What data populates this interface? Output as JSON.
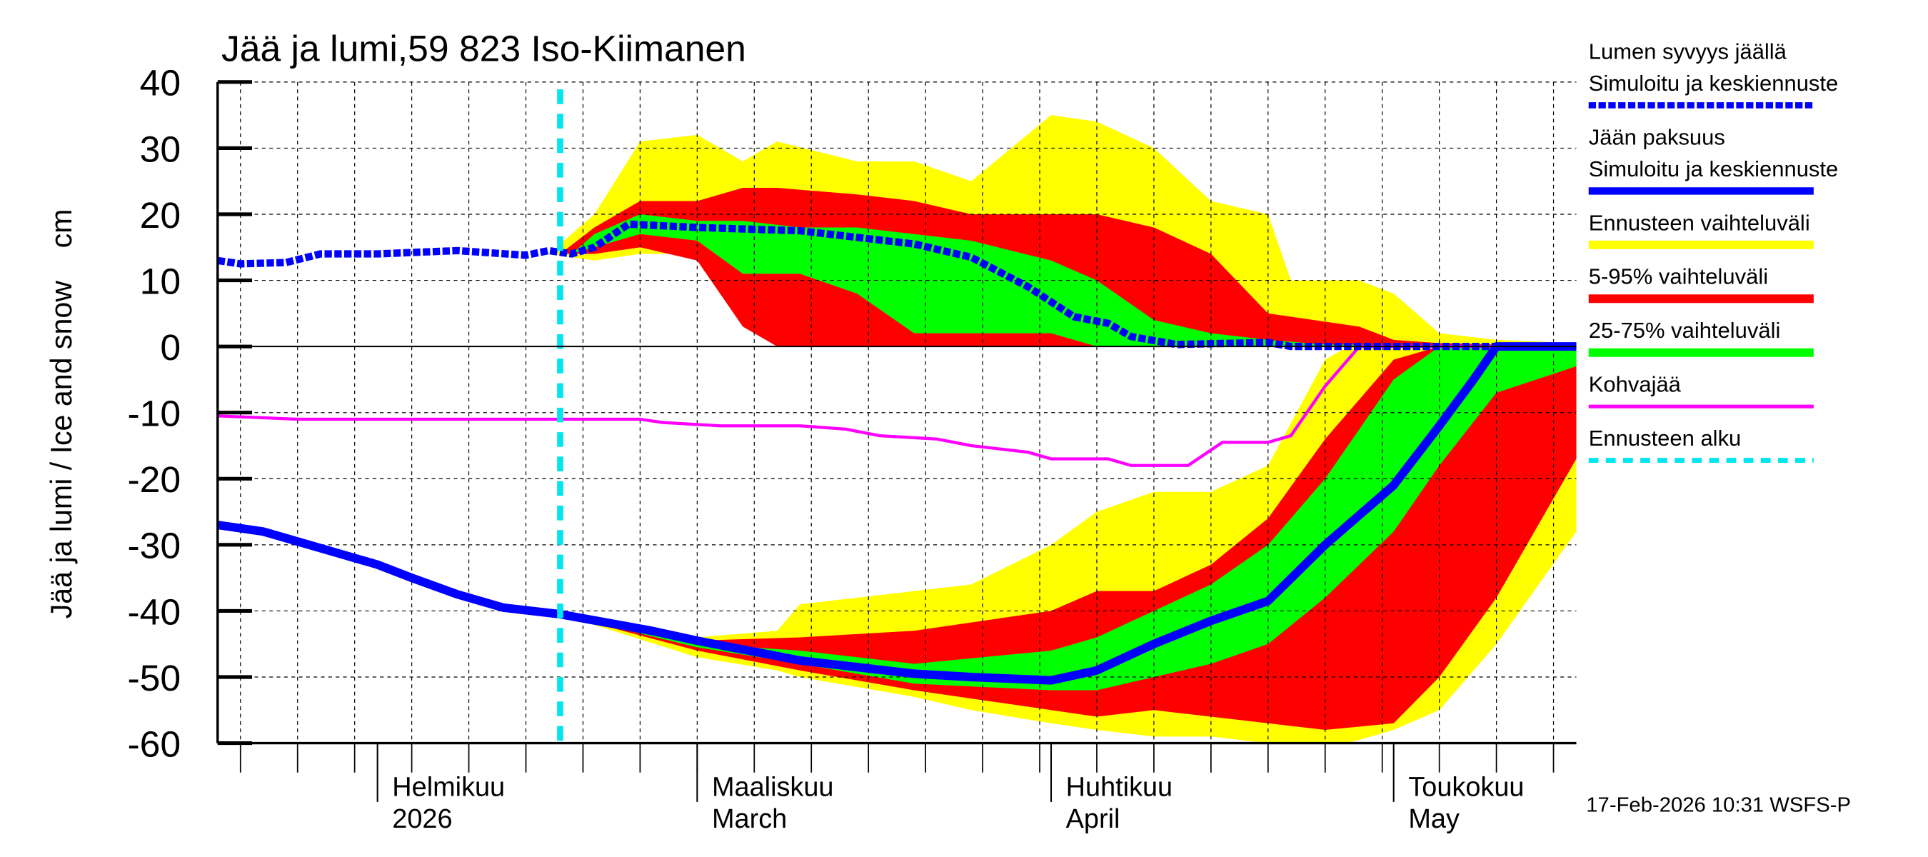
{
  "chart_data": {
    "type": "area",
    "title": "Jää ja lumi,59 823 Iso-Kiimanen",
    "ylabel": "Jää ja lumi / Ice and snow    cm",
    "ylim": [
      -60,
      40
    ],
    "yticks": [
      "40",
      "30",
      "20",
      "10",
      "0",
      "-10",
      "-20",
      "-30",
      "-40",
      "-50",
      "-60"
    ],
    "xlim": [
      "2026-01-18",
      "2026-05-17"
    ],
    "xticks": [
      {
        "date": "2026-02-01",
        "line1": "Helmikuu",
        "line2": "2026"
      },
      {
        "date": "2026-03-01",
        "line1": "Maaliskuu",
        "line2": "March"
      },
      {
        "date": "2026-04-01",
        "line1": "Huhtikuu",
        "line2": "April"
      },
      {
        "date": "2026-05-01",
        "line1": "Toukokuu",
        "line2": "May"
      }
    ],
    "grid": true,
    "forecast_start": "2026-02-17",
    "footer": "17-Feb-2026 10:31 WSFS-P",
    "colors": {
      "snow": "#0000ff",
      "ice": "#0000ff",
      "range": "#ffff00",
      "p5_95": "#ff0000",
      "p25_75": "#00ff00",
      "slush": "#ff00ff",
      "forecast_start": "#00e5ee"
    },
    "legend": [
      {
        "line1": "Lumen syvyys jäällä",
        "line2": "Simuloitu ja keskiennuste",
        "style": "dotted",
        "color": "#0000ff"
      },
      {
        "line1": "Jään paksuus",
        "line2": "Simuloitu ja keskiennuste",
        "style": "thick",
        "color": "#0000ff"
      },
      {
        "line1": "Ennusteen vaihteluväli",
        "style": "band",
        "color": "#ffff00"
      },
      {
        "line1": "5-95% vaihteluväli",
        "style": "band",
        "color": "#ff0000"
      },
      {
        "line1": "25-75% vaihteluväli",
        "style": "band",
        "color": "#00ff00"
      },
      {
        "line1": "Kohvajää",
        "style": "line",
        "color": "#ff00ff"
      },
      {
        "line1": "Ennusteen alku",
        "style": "dashed",
        "color": "#00e5ee"
      }
    ],
    "snow": [
      [
        "2026-01-18",
        13
      ],
      [
        "2026-01-20",
        12.5
      ],
      [
        "2026-01-24",
        12.7
      ],
      [
        "2026-01-27",
        14
      ],
      [
        "2026-02-01",
        14
      ],
      [
        "2026-02-08",
        14.5
      ],
      [
        "2026-02-14",
        13.8
      ],
      [
        "2026-02-16",
        14.5
      ],
      [
        "2026-02-18",
        14
      ],
      [
        "2026-02-20",
        15
      ],
      [
        "2026-02-23",
        18.5
      ],
      [
        "2026-03-01",
        18
      ],
      [
        "2026-03-10",
        17.5
      ],
      [
        "2026-03-15",
        16.5
      ],
      [
        "2026-03-20",
        15.5
      ],
      [
        "2026-03-25",
        13.5
      ],
      [
        "2026-03-30",
        9
      ],
      [
        "2026-04-03",
        4.5
      ],
      [
        "2026-04-06",
        3.5
      ],
      [
        "2026-04-08",
        1.5
      ],
      [
        "2026-04-12",
        0.3
      ],
      [
        "2026-04-20",
        0.6
      ],
      [
        "2026-04-22",
        0
      ],
      [
        "2026-05-17",
        0
      ]
    ],
    "ice": [
      [
        "2026-01-18",
        -27
      ],
      [
        "2026-01-22",
        -28
      ],
      [
        "2026-01-28",
        -31
      ],
      [
        "2026-02-01",
        -33
      ],
      [
        "2026-02-04",
        -35
      ],
      [
        "2026-02-08",
        -37.5
      ],
      [
        "2026-02-12",
        -39.5
      ],
      [
        "2026-02-17",
        -40.5
      ],
      [
        "2026-02-25",
        -43
      ],
      [
        "2026-03-01",
        -44.5
      ],
      [
        "2026-03-10",
        -47.5
      ],
      [
        "2026-03-15",
        -48.5
      ],
      [
        "2026-03-20",
        -49.5
      ],
      [
        "2026-03-25",
        -50
      ],
      [
        "2026-04-01",
        -50.5
      ],
      [
        "2026-04-05",
        -49
      ],
      [
        "2026-04-10",
        -45
      ],
      [
        "2026-04-15",
        -41.5
      ],
      [
        "2026-04-20",
        -38.5
      ],
      [
        "2026-04-25",
        -30
      ],
      [
        "2026-05-01",
        -21
      ],
      [
        "2026-05-05",
        -12
      ],
      [
        "2026-05-08",
        -5
      ],
      [
        "2026-05-10",
        0
      ],
      [
        "2026-05-17",
        0
      ]
    ],
    "slush": [
      [
        "2026-01-18",
        -10.5
      ],
      [
        "2026-01-25",
        -11
      ],
      [
        "2026-02-24",
        -11
      ],
      [
        "2026-02-26",
        -11.5
      ],
      [
        "2026-03-03",
        -12
      ],
      [
        "2026-03-10",
        -12
      ],
      [
        "2026-03-14",
        -12.5
      ],
      [
        "2026-03-17",
        -13.5
      ],
      [
        "2026-03-22",
        -14
      ],
      [
        "2026-03-25",
        -15
      ],
      [
        "2026-03-30",
        -16
      ],
      [
        "2026-04-01",
        -17
      ],
      [
        "2026-04-06",
        -17
      ],
      [
        "2026-04-08",
        -18
      ],
      [
        "2026-04-13",
        -18
      ],
      [
        "2026-04-16",
        -14.5
      ],
      [
        "2026-04-20",
        -14.5
      ],
      [
        "2026-04-22",
        -13.5
      ],
      [
        "2026-04-25",
        -6
      ],
      [
        "2026-04-28",
        0
      ],
      [
        "2026-05-17",
        0
      ]
    ],
    "bands_snow": {
      "range": [
        [
          "2026-02-16",
          14,
          14
        ],
        [
          "2026-02-20",
          13,
          20
        ],
        [
          "2026-02-24",
          14,
          31
        ],
        [
          "2026-03-01",
          14,
          32
        ],
        [
          "2026-03-05",
          5,
          28
        ],
        [
          "2026-03-08",
          0,
          31
        ],
        [
          "2026-03-15",
          0,
          28
        ],
        [
          "2026-03-20",
          0,
          28
        ],
        [
          "2026-03-25",
          0,
          25
        ],
        [
          "2026-04-01",
          0,
          35
        ],
        [
          "2026-04-05",
          0,
          34
        ],
        [
          "2026-04-10",
          0,
          30
        ],
        [
          "2026-04-15",
          0,
          22
        ],
        [
          "2026-04-20",
          0,
          20
        ],
        [
          "2026-04-22",
          0,
          10
        ],
        [
          "2026-04-28",
          0,
          10
        ],
        [
          "2026-05-01",
          0,
          8
        ],
        [
          "2026-05-05",
          0,
          2
        ],
        [
          "2026-05-10",
          0,
          1
        ],
        [
          "2026-05-17",
          0,
          0.5
        ]
      ],
      "p5_95": [
        [
          "2026-02-17",
          14,
          14
        ],
        [
          "2026-02-20",
          14,
          18
        ],
        [
          "2026-02-24",
          15,
          22
        ],
        [
          "2026-03-01",
          13,
          22
        ],
        [
          "2026-03-05",
          3,
          24
        ],
        [
          "2026-03-08",
          0,
          24
        ],
        [
          "2026-03-15",
          0,
          23
        ],
        [
          "2026-03-20",
          0,
          22
        ],
        [
          "2026-03-25",
          0,
          20
        ],
        [
          "2026-04-01",
          0,
          20
        ],
        [
          "2026-04-05",
          0,
          20
        ],
        [
          "2026-04-10",
          0,
          18
        ],
        [
          "2026-04-15",
          0,
          14
        ],
        [
          "2026-04-20",
          0,
          5
        ],
        [
          "2026-04-28",
          0,
          3
        ],
        [
          "2026-05-01",
          0,
          1
        ],
        [
          "2026-05-05",
          0,
          0.5
        ],
        [
          "2026-05-17",
          0,
          0
        ]
      ],
      "p25_75": [
        [
          "2026-02-18",
          14,
          14
        ],
        [
          "2026-02-20",
          15,
          17
        ],
        [
          "2026-02-24",
          17,
          20
        ],
        [
          "2026-03-01",
          16,
          19
        ],
        [
          "2026-03-05",
          11,
          19
        ],
        [
          "2026-03-10",
          11,
          18
        ],
        [
          "2026-03-15",
          8,
          18
        ],
        [
          "2026-03-20",
          2,
          17
        ],
        [
          "2026-03-25",
          2,
          16
        ],
        [
          "2026-04-01",
          2,
          13
        ],
        [
          "2026-04-05",
          0,
          10
        ],
        [
          "2026-04-10",
          0,
          4
        ],
        [
          "2026-04-15",
          0,
          2
        ],
        [
          "2026-04-20",
          0,
          1
        ],
        [
          "2026-04-25",
          0,
          0.3
        ],
        [
          "2026-05-17",
          0,
          0
        ]
      ]
    },
    "bands_ice": {
      "range": [
        [
          "2026-02-17",
          -40.5,
          -40.5
        ],
        [
          "2026-03-01",
          -47,
          -44
        ],
        [
          "2026-03-08",
          -49,
          -43
        ],
        [
          "2026-03-10",
          -50,
          -39
        ],
        [
          "2026-03-20",
          -53,
          -37
        ],
        [
          "2026-03-25",
          -55,
          -36
        ],
        [
          "2026-04-01",
          -57,
          -30
        ],
        [
          "2026-04-05",
          -58,
          -25
        ],
        [
          "2026-04-10",
          -59,
          -22
        ],
        [
          "2026-04-15",
          -59,
          -22
        ],
        [
          "2026-04-20",
          -60,
          -18
        ],
        [
          "2026-04-25",
          -60,
          -2
        ],
        [
          "2026-04-27",
          -60,
          0
        ],
        [
          "2026-05-01",
          -58,
          0
        ],
        [
          "2026-05-05",
          -55,
          0
        ],
        [
          "2026-05-10",
          -45,
          0
        ],
        [
          "2026-05-17",
          -28,
          0
        ]
      ],
      "p5_95": [
        [
          "2026-02-17",
          -40.5,
          -40.5
        ],
        [
          "2026-03-01",
          -46,
          -44.5
        ],
        [
          "2026-03-10",
          -49,
          -44
        ],
        [
          "2026-03-20",
          -52,
          -43
        ],
        [
          "2026-04-01",
          -55,
          -40
        ],
        [
          "2026-04-05",
          -56,
          -37
        ],
        [
          "2026-04-10",
          -55,
          -37
        ],
        [
          "2026-04-15",
          -56,
          -33
        ],
        [
          "2026-04-20",
          -57,
          -26
        ],
        [
          "2026-04-25",
          -58,
          -14
        ],
        [
          "2026-05-01",
          -57,
          -2
        ],
        [
          "2026-05-05",
          -50,
          0
        ],
        [
          "2026-05-10",
          -38,
          0
        ],
        [
          "2026-05-17",
          -17,
          0
        ]
      ],
      "p25_75": [
        [
          "2026-02-17",
          -40.5,
          -40.5
        ],
        [
          "2026-03-01",
          -45.5,
          -45
        ],
        [
          "2026-03-10",
          -48,
          -46
        ],
        [
          "2026-03-20",
          -51,
          -48
        ],
        [
          "2026-04-01",
          -52,
          -46
        ],
        [
          "2026-04-05",
          -52,
          -44
        ],
        [
          "2026-04-10",
          -50,
          -40
        ],
        [
          "2026-04-15",
          -48,
          -36
        ],
        [
          "2026-04-20",
          -45,
          -30
        ],
        [
          "2026-04-25",
          -38,
          -20
        ],
        [
          "2026-05-01",
          -28,
          -5
        ],
        [
          "2026-05-05",
          -18,
          0
        ],
        [
          "2026-05-10",
          -7,
          0
        ],
        [
          "2026-05-17",
          -3,
          0
        ]
      ]
    }
  }
}
